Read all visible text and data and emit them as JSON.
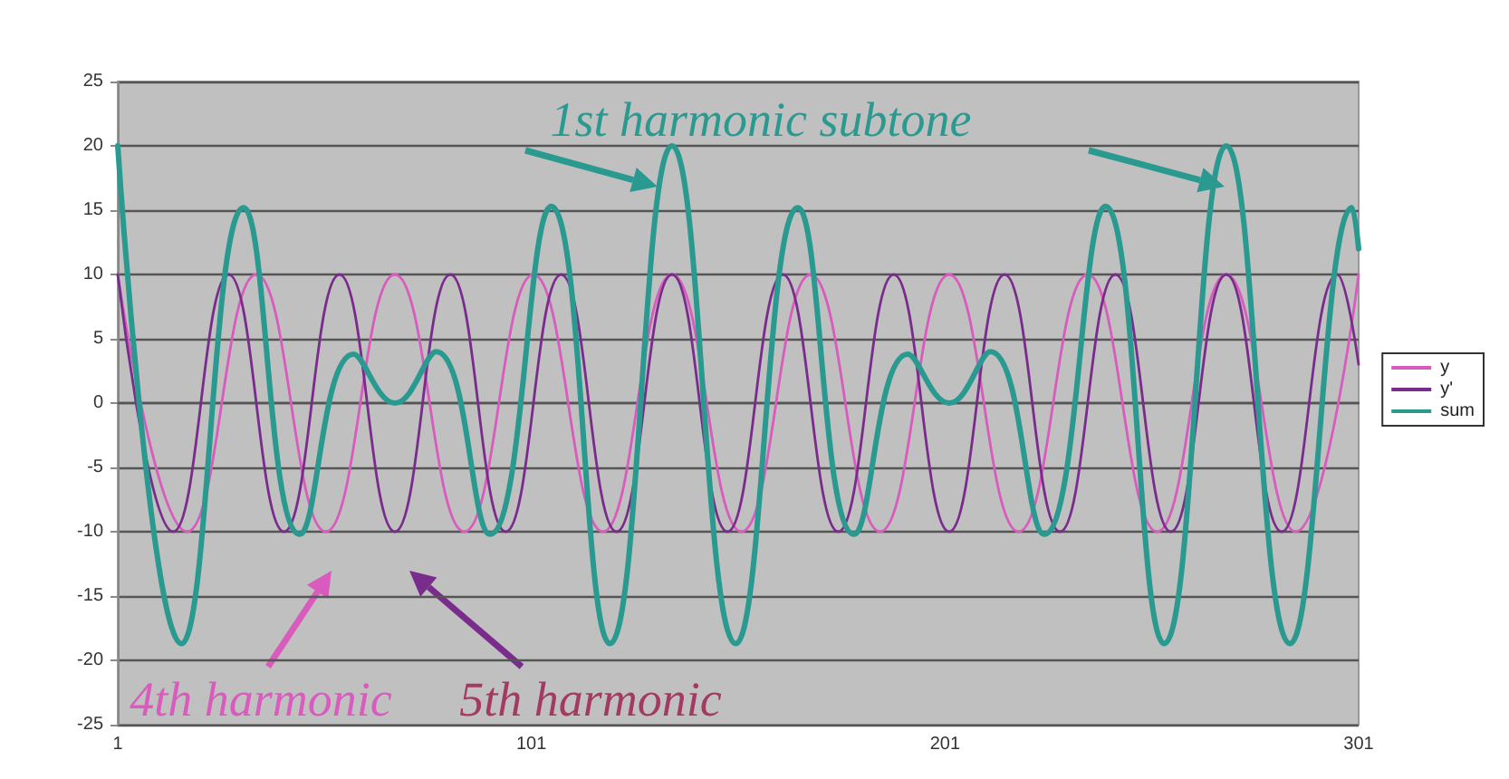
{
  "chart_data": {
    "type": "line",
    "xlim": [
      1,
      301
    ],
    "xticks": [
      1,
      101,
      201,
      301
    ],
    "ylim": [
      -25,
      25
    ],
    "yticks": [
      -25,
      -20,
      -15,
      -10,
      -5,
      0,
      5,
      10,
      15,
      20,
      25
    ],
    "grid": "y",
    "legend": "right",
    "marker": "none",
    "line_style": "solid",
    "annotations": [
      "1st harmonic subtone",
      "4th harmonic",
      "5th harmonic"
    ],
    "series": [
      {
        "name": "y",
        "color": "#d85bbd",
        "x": [
          1,
          17.8,
          34.5,
          51.3,
          68,
          84.8,
          101.5,
          118.3,
          135,
          151.8,
          168.5,
          185.3,
          202,
          218.8,
          235.5,
          252.3,
          269,
          285.8,
          301
        ],
        "values": [
          10,
          -10,
          10,
          -10,
          10,
          -10,
          10,
          -10,
          10,
          -10,
          10,
          -10,
          10,
          -10,
          10,
          -10,
          10,
          -10,
          10
        ]
      },
      {
        "name": "y'",
        "color": "#7a2c8c",
        "x": [
          1,
          14.4,
          27.8,
          41.2,
          54.6,
          68,
          81.4,
          94.8,
          108.2,
          121.6,
          135,
          148.4,
          161.8,
          175.2,
          188.6,
          202,
          215.4,
          228.8,
          242.2,
          255.6,
          269,
          282.4,
          295.8,
          301
        ],
        "values": [
          10,
          -10,
          10,
          -10,
          10,
          -10,
          10,
          -10,
          10,
          -10,
          10,
          -10,
          10,
          -10,
          10,
          -10,
          10,
          -10,
          10,
          -10,
          10,
          -10,
          10,
          3
        ]
      },
      {
        "name": "sum",
        "color": "#2a9a90",
        "x": [
          1,
          16.4,
          31.4,
          45,
          58,
          68,
          78,
          91,
          105.8,
          120,
          135,
          150.4,
          165.4,
          179,
          192,
          202,
          212,
          225,
          239.8,
          254,
          269,
          284.4,
          299.4,
          301
        ],
        "values": [
          20,
          -18.7,
          15.2,
          -10.2,
          3.8,
          0,
          4,
          -10.2,
          15.3,
          -18.7,
          20,
          -18.7,
          15.2,
          -10.2,
          3.8,
          0,
          4,
          -10.2,
          15.3,
          -18.7,
          20,
          -18.7,
          15.2,
          12
        ]
      }
    ]
  }
}
